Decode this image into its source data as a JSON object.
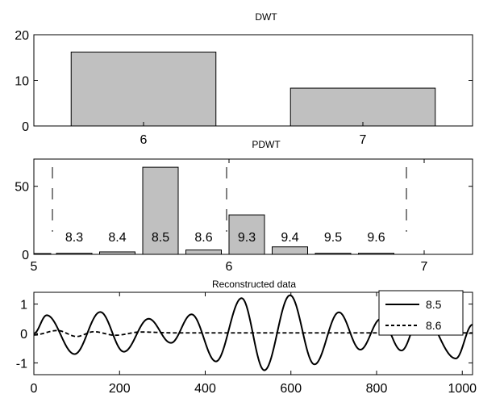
{
  "chart_data": [
    {
      "type": "bar",
      "title": "DWT",
      "categories": [
        "6",
        "7"
      ],
      "values": [
        16.2,
        8.3
      ],
      "ylim": [
        0,
        20
      ],
      "yticks": [
        0,
        10,
        20
      ],
      "bar_color": "#c0c0c0"
    },
    {
      "type": "bar",
      "title": "PDWT",
      "bars": [
        {
          "label": "8.3",
          "value": 0.8
        },
        {
          "label": "8.4",
          "value": 1.8
        },
        {
          "label": "8.5",
          "value": 64
        },
        {
          "label": "8.6",
          "value": 3.2
        },
        {
          "label": "9.3",
          "value": 29
        },
        {
          "label": "9.4",
          "value": 5.5
        },
        {
          "label": "9.5",
          "value": 0.8
        },
        {
          "label": "9.6",
          "value": 0.8
        }
      ],
      "edge_bar_value": 0.6,
      "ylim": [
        0,
        70
      ],
      "yticks": [
        0,
        50
      ],
      "xtick_labels": [
        "5",
        "6",
        "7"
      ],
      "bar_color": "#c0c0c0"
    },
    {
      "type": "line",
      "title": "Reconstructed data",
      "xlim": [
        0,
        1024
      ],
      "ylim": [
        -1.4,
        1.4
      ],
      "xticks": [
        0,
        200,
        400,
        600,
        800,
        1000
      ],
      "yticks": [
        -1,
        0,
        1
      ],
      "legend": "top-right",
      "series": [
        {
          "name": "8.5",
          "style": "solid",
          "extrema": [
            [
              0,
              0
            ],
            [
              30,
              0.62
            ],
            [
              95,
              -0.7
            ],
            [
              155,
              0.73
            ],
            [
              210,
              -0.62
            ],
            [
              268,
              0.5
            ],
            [
              320,
              -0.32
            ],
            [
              368,
              0.65
            ],
            [
              425,
              -0.95
            ],
            [
              485,
              1.2
            ],
            [
              538,
              -1.25
            ],
            [
              598,
              1.3
            ],
            [
              655,
              -1.05
            ],
            [
              712,
              0.72
            ],
            [
              762,
              -0.55
            ],
            [
              810,
              0.5
            ],
            [
              858,
              -0.58
            ],
            [
              905,
              0.72
            ],
            [
              985,
              -0.85
            ],
            [
              1024,
              0.3
            ]
          ]
        },
        {
          "name": "8.6",
          "style": "dashed",
          "extrema": [
            [
              0,
              -0.05
            ],
            [
              55,
              0.1
            ],
            [
              100,
              -0.1
            ],
            [
              140,
              0.06
            ],
            [
              190,
              -0.06
            ],
            [
              250,
              0.05
            ],
            [
              330,
              0.02
            ],
            [
              450,
              0.02
            ],
            [
              560,
              0.02
            ],
            [
              680,
              0.02
            ],
            [
              800,
              0.02
            ],
            [
              920,
              0.02
            ],
            [
              1024,
              0.02
            ]
          ]
        }
      ]
    }
  ]
}
